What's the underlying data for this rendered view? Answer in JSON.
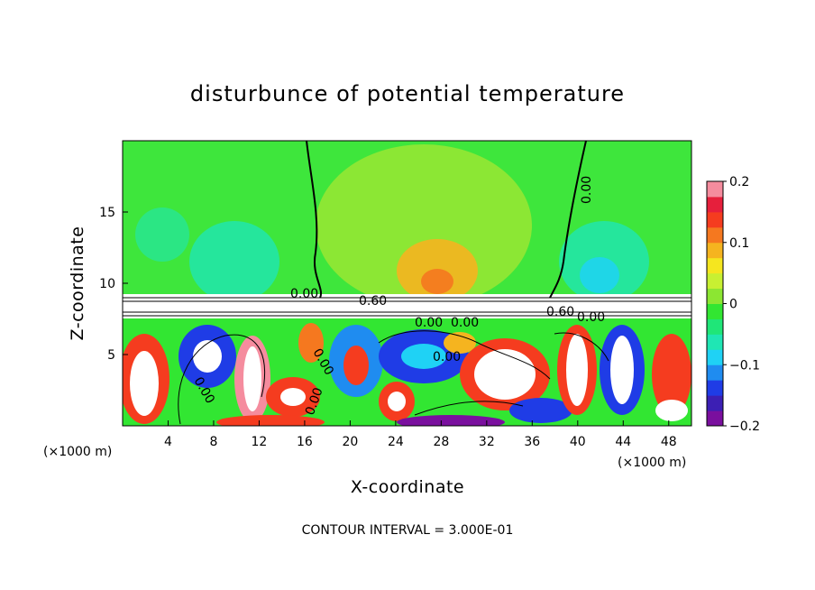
{
  "chart_data": {
    "type": "heatmap",
    "title": "disturbunce of potential temperature",
    "xlabel": "X-coordinate",
    "ylabel": "Z-coordinate",
    "x_unit": "(×1000 m)",
    "y_unit": "(×1000 m)",
    "xlim": [
      0,
      50
    ],
    "ylim": [
      0,
      20
    ],
    "x_ticks": [
      4,
      8,
      12,
      16,
      20,
      24,
      28,
      32,
      36,
      40,
      44,
      48
    ],
    "y_ticks": [
      5,
      10,
      15
    ],
    "colorbar": {
      "range": [
        -0.2,
        0.2
      ],
      "ticks": [
        "0.2",
        "0.1",
        "0",
        "−0.1",
        "−0.2"
      ],
      "colors": [
        "#7a0f9e",
        "#3c1fb4",
        "#1f3ce6",
        "#1f8cf0",
        "#1fd2f5",
        "#1fe6b4",
        "#1fe678",
        "#32e632",
        "#8ce632",
        "#c8f032",
        "#f5e61f",
        "#f5b41f",
        "#f5781f",
        "#f53c1f",
        "#e61f3c",
        "#f58c9e"
      ]
    },
    "contour_labels": [
      "0.00",
      "0.00",
      "0.60",
      "0.60",
      "0.00",
      "0.00",
      "0.00",
      "0.00",
      "0.00",
      "0.00",
      "0.00"
    ],
    "footer": "CONTOUR INTERVAL = 3.000E-01"
  }
}
